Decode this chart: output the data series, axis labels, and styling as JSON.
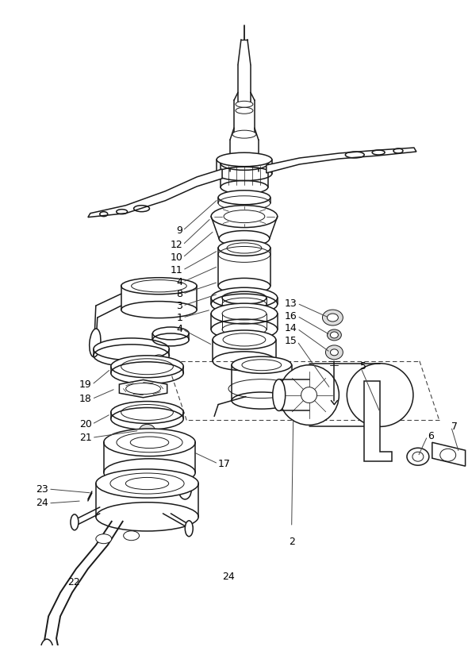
{
  "bg_color": "#ffffff",
  "line_color": "#1a1a1a",
  "figsize": [
    5.9,
    8.15
  ],
  "dpi": 100
}
